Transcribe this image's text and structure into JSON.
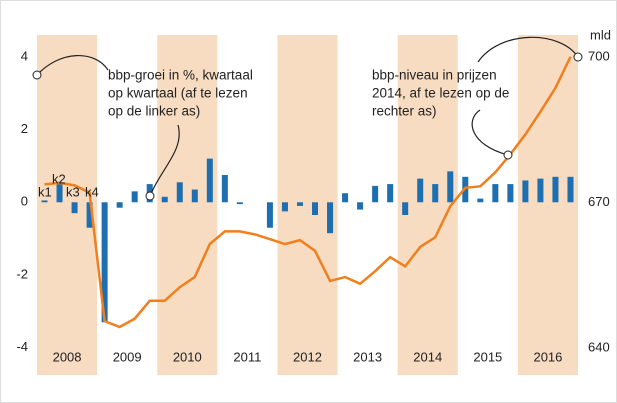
{
  "chart_data": {
    "type": "bar-line",
    "x": [
      2008.125,
      2008.375,
      2008.625,
      2008.875,
      2009.125,
      2009.375,
      2009.625,
      2009.875,
      2010.125,
      2010.375,
      2010.625,
      2010.875,
      2011.125,
      2011.375,
      2011.625,
      2011.875,
      2012.125,
      2012.375,
      2012.625,
      2012.875,
      2013.125,
      2013.375,
      2013.625,
      2013.875,
      2014.125,
      2014.375,
      2014.625,
      2014.875,
      2015.125,
      2015.375,
      2015.625,
      2015.875,
      2016.125,
      2016.375,
      2016.625,
      2016.875
    ],
    "xlim": [
      2008,
      2017
    ],
    "xticks": [
      {
        "value": 2008.5,
        "label": "2008"
      },
      {
        "value": 2009.5,
        "label": "2009"
      },
      {
        "value": 2010.5,
        "label": "2010"
      },
      {
        "value": 2011.5,
        "label": "2011"
      },
      {
        "value": 2012.5,
        "label": "2012"
      },
      {
        "value": 2013.5,
        "label": "2013"
      },
      {
        "value": 2014.5,
        "label": "2014"
      },
      {
        "value": 2015.5,
        "label": "2015"
      },
      {
        "value": 2016.5,
        "label": "2016"
      }
    ],
    "series": [
      {
        "name": "bbp-groei",
        "color": "#1f6fb0",
        "type": "bar",
        "values": [
          0.05,
          0.5,
          -0.3,
          -0.7,
          -3.3,
          -0.15,
          0.3,
          0.5,
          0.15,
          0.55,
          0.35,
          1.2,
          0.75,
          -0.05,
          0,
          -0.7,
          -0.25,
          -0.1,
          -0.35,
          -0.85,
          0.25,
          -0.2,
          0.45,
          0.5,
          -0.35,
          0.65,
          0.5,
          0.85,
          0.7,
          0.1,
          0.5,
          0.5,
          0.6,
          0.65,
          0.7,
          0.7
        ]
      },
      {
        "name": "bbp-niveau",
        "color": "#f07f1e",
        "type": "line",
        "axis": "y2",
        "values": [
          673.7,
          674,
          673.5,
          672,
          645.5,
          644.3,
          646,
          649.7,
          649.7,
          652.5,
          654.6,
          661.4,
          664,
          664,
          663.4,
          662.4,
          661.4,
          662.2,
          660,
          653.8,
          654.6,
          653.2,
          655.8,
          658.7,
          656.8,
          660.8,
          662.8,
          669.2,
          673,
          673.3,
          676.2,
          679.9,
          684,
          688.7,
          693.6,
          700
        ]
      }
    ],
    "ylim": [
      -4.75,
      4.6
    ],
    "yticks": [
      -4,
      -2,
      0,
      2,
      4
    ],
    "y2lim": [
      634.4,
      704.5
    ],
    "y2ticks": [
      640,
      670,
      700
    ],
    "y2_unit": "mld",
    "band_color": "#f7dcc2",
    "quarter_labels": [
      "k1",
      "k2",
      "k3",
      "k4"
    ],
    "annotations": [
      [
        "bbp-groei in %, kwartaal",
        "op kwartaal (af te lezen",
        "op de linker as)"
      ],
      [
        "bbp-niveau in prijzen",
        "2014, af te lezen op de",
        "rechter as)"
      ]
    ]
  }
}
